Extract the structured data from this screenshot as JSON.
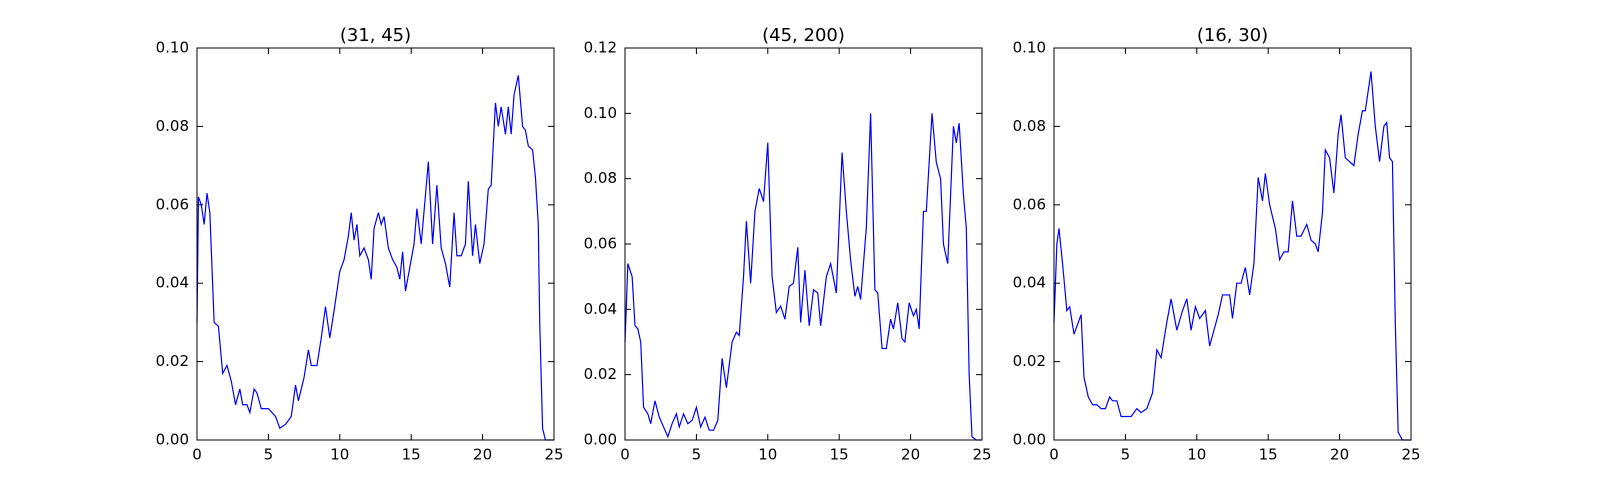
{
  "chart_data": [
    {
      "type": "line",
      "title": "(31, 45)",
      "color": "#0000ff",
      "x": [
        0,
        0.1,
        0.3,
        0.5,
        0.7,
        0.9,
        1.2,
        1.5,
        1.8,
        2.1,
        2.4,
        2.7,
        3,
        3.2,
        3.5,
        3.7,
        4,
        4.2,
        4.5,
        5,
        5.5,
        5.8,
        6.2,
        6.6,
        6.9,
        7.1,
        7.5,
        7.8,
        8,
        8.4,
        8.7,
        9,
        9.3,
        9.6,
        10,
        10.3,
        10.6,
        10.8,
        11,
        11.2,
        11.4,
        11.7,
        12,
        12.2,
        12.4,
        12.7,
        12.9,
        13.1,
        13.4,
        13.7,
        14,
        14.2,
        14.4,
        14.6,
        14.9,
        15.2,
        15.4,
        15.7,
        16.2,
        16.5,
        16.8,
        17.1,
        17.4,
        17.7,
        18,
        18.2,
        18.5,
        18.8,
        19,
        19.3,
        19.5,
        19.8,
        20.1,
        20.4,
        20.6,
        20.9,
        21.1,
        21.3,
        21.6,
        21.8,
        22,
        22.2,
        22.5,
        22.8,
        23,
        23.2,
        23.5,
        23.7,
        23.9,
        24,
        24.2,
        24.4,
        25
      ],
      "values": [
        0.03,
        0.062,
        0.06,
        0.055,
        0.063,
        0.058,
        0.03,
        0.029,
        0.017,
        0.019,
        0.015,
        0.009,
        0.013,
        0.009,
        0.009,
        0.007,
        0.013,
        0.012,
        0.008,
        0.008,
        0.006,
        0.003,
        0.004,
        0.006,
        0.014,
        0.01,
        0.016,
        0.023,
        0.019,
        0.019,
        0.026,
        0.034,
        0.026,
        0.033,
        0.043,
        0.046,
        0.052,
        0.058,
        0.051,
        0.055,
        0.047,
        0.049,
        0.046,
        0.041,
        0.054,
        0.058,
        0.055,
        0.057,
        0.049,
        0.046,
        0.044,
        0.041,
        0.048,
        0.038,
        0.044,
        0.05,
        0.059,
        0.05,
        0.071,
        0.05,
        0.065,
        0.049,
        0.045,
        0.039,
        0.058,
        0.047,
        0.047,
        0.05,
        0.066,
        0.047,
        0.055,
        0.045,
        0.05,
        0.064,
        0.065,
        0.086,
        0.08,
        0.085,
        0.078,
        0.085,
        0.078,
        0.088,
        0.093,
        0.08,
        0.079,
        0.075,
        0.074,
        0.067,
        0.055,
        0.03,
        0.003,
        0,
        0
      ],
      "xlim": [
        0,
        25
      ],
      "xticks": [
        0,
        5,
        10,
        15,
        20,
        25
      ],
      "ylim": [
        0,
        0.1
      ],
      "yticks": [
        {
          "value": 0,
          "label": "0.00"
        },
        {
          "value": 0.02,
          "label": "0.02"
        },
        {
          "value": 0.04,
          "label": "0.04"
        },
        {
          "value": 0.06,
          "label": "0.06"
        },
        {
          "value": 0.08,
          "label": "0.08"
        },
        {
          "value": 0.1,
          "label": "0.10"
        }
      ]
    },
    {
      "type": "line",
      "title": "(45, 200)",
      "color": "#0000ff",
      "x": [
        0,
        0.2,
        0.5,
        0.7,
        0.9,
        1.1,
        1.3,
        1.6,
        1.8,
        2.1,
        2.4,
        2.7,
        3,
        3.3,
        3.6,
        3.8,
        4.1,
        4.4,
        4.7,
        5,
        5.3,
        5.6,
        5.9,
        6.2,
        6.5,
        6.8,
        7.1,
        7.5,
        7.8,
        8,
        8.3,
        8.5,
        8.8,
        9.1,
        9.4,
        9.7,
        10,
        10.3,
        10.6,
        10.9,
        11.2,
        11.5,
        11.8,
        12.1,
        12.3,
        12.6,
        12.9,
        13.2,
        13.5,
        13.7,
        14.1,
        14.4,
        14.8,
        15.2,
        15.5,
        15.8,
        16.1,
        16.3,
        16.5,
        16.9,
        17.2,
        17.5,
        17.7,
        18,
        18.3,
        18.6,
        18.8,
        19.1,
        19.4,
        19.6,
        19.9,
        20.2,
        20.4,
        20.6,
        20.9,
        21.1,
        21.5,
        21.8,
        22.1,
        22.3,
        22.6,
        23,
        23.2,
        23.4,
        23.7,
        23.9,
        24.1,
        24.3,
        24.6,
        25
      ],
      "values": [
        0.03,
        0.054,
        0.05,
        0.035,
        0.034,
        0.03,
        0.01,
        0.008,
        0.005,
        0.012,
        0.007,
        0.004,
        0.001,
        0.005,
        0.008,
        0.004,
        0.008,
        0.005,
        0.006,
        0.01,
        0.004,
        0.007,
        0.003,
        0.003,
        0.006,
        0.025,
        0.016,
        0.03,
        0.033,
        0.032,
        0.05,
        0.067,
        0.048,
        0.07,
        0.077,
        0.073,
        0.091,
        0.05,
        0.039,
        0.041,
        0.037,
        0.047,
        0.048,
        0.059,
        0.036,
        0.052,
        0.035,
        0.046,
        0.045,
        0.035,
        0.05,
        0.054,
        0.045,
        0.088,
        0.07,
        0.055,
        0.044,
        0.047,
        0.043,
        0.065,
        0.1,
        0.046,
        0.045,
        0.028,
        0.028,
        0.037,
        0.034,
        0.042,
        0.031,
        0.03,
        0.042,
        0.038,
        0.04,
        0.034,
        0.07,
        0.07,
        0.1,
        0.085,
        0.08,
        0.06,
        0.054,
        0.096,
        0.091,
        0.097,
        0.075,
        0.065,
        0.02,
        0.001,
        0,
        0
      ],
      "xlim": [
        0,
        25
      ],
      "xticks": [
        0,
        5,
        10,
        15,
        20,
        25
      ],
      "ylim": [
        0,
        0.12
      ],
      "yticks": [
        {
          "value": 0,
          "label": "0.00"
        },
        {
          "value": 0.02,
          "label": "0.02"
        },
        {
          "value": 0.04,
          "label": "0.04"
        },
        {
          "value": 0.06,
          "label": "0.06"
        },
        {
          "value": 0.08,
          "label": "0.08"
        },
        {
          "value": 0.1,
          "label": "0.10"
        },
        {
          "value": 0.12,
          "label": "0.12"
        }
      ]
    },
    {
      "type": "line",
      "title": "(16, 30)",
      "color": "#0000ff",
      "x": [
        0,
        0.2,
        0.35,
        0.6,
        0.9,
        1.1,
        1.4,
        1.7,
        1.9,
        2.1,
        2.4,
        2.7,
        3,
        3.3,
        3.6,
        3.9,
        4.1,
        4.4,
        4.7,
        5,
        5.4,
        5.8,
        6.1,
        6.5,
        6.9,
        7.2,
        7.5,
        7.9,
        8.2,
        8.6,
        9,
        9.3,
        9.6,
        9.9,
        10.2,
        10.6,
        10.9,
        11.2,
        11.5,
        11.8,
        12.3,
        12.5,
        12.8,
        13.1,
        13.4,
        13.7,
        14,
        14.3,
        14.6,
        14.8,
        15.1,
        15.5,
        15.8,
        16.1,
        16.4,
        16.7,
        17,
        17.3,
        17.7,
        18,
        18.3,
        18.5,
        18.8,
        19,
        19.3,
        19.6,
        19.9,
        20.1,
        20.4,
        20.7,
        21,
        21.3,
        21.6,
        21.8,
        22.2,
        22.5,
        22.8,
        23.1,
        23.3,
        23.5,
        23.7,
        23.9,
        24.1,
        24.4,
        25
      ],
      "values": [
        0.03,
        0.05,
        0.054,
        0.045,
        0.033,
        0.034,
        0.027,
        0.03,
        0.032,
        0.016,
        0.011,
        0.009,
        0.009,
        0.008,
        0.008,
        0.011,
        0.01,
        0.01,
        0.006,
        0.006,
        0.006,
        0.008,
        0.007,
        0.008,
        0.012,
        0.023,
        0.021,
        0.03,
        0.036,
        0.028,
        0.033,
        0.036,
        0.028,
        0.034,
        0.031,
        0.033,
        0.024,
        0.028,
        0.032,
        0.037,
        0.037,
        0.031,
        0.04,
        0.04,
        0.044,
        0.037,
        0.045,
        0.067,
        0.061,
        0.068,
        0.06,
        0.054,
        0.046,
        0.048,
        0.048,
        0.061,
        0.052,
        0.052,
        0.055,
        0.051,
        0.05,
        0.048,
        0.058,
        0.074,
        0.072,
        0.063,
        0.078,
        0.083,
        0.072,
        0.071,
        0.07,
        0.078,
        0.084,
        0.084,
        0.094,
        0.08,
        0.071,
        0.08,
        0.081,
        0.072,
        0.071,
        0.03,
        0.002,
        0,
        0
      ],
      "xlim": [
        0,
        25
      ],
      "xticks": [
        0,
        5,
        10,
        15,
        20,
        25
      ],
      "ylim": [
        0,
        0.1
      ],
      "yticks": [
        {
          "value": 0,
          "label": "0.00"
        },
        {
          "value": 0.02,
          "label": "0.02"
        },
        {
          "value": 0.04,
          "label": "0.04"
        },
        {
          "value": 0.06,
          "label": "0.06"
        },
        {
          "value": 0.08,
          "label": "0.08"
        },
        {
          "value": 0.1,
          "label": "0.10"
        }
      ]
    }
  ]
}
